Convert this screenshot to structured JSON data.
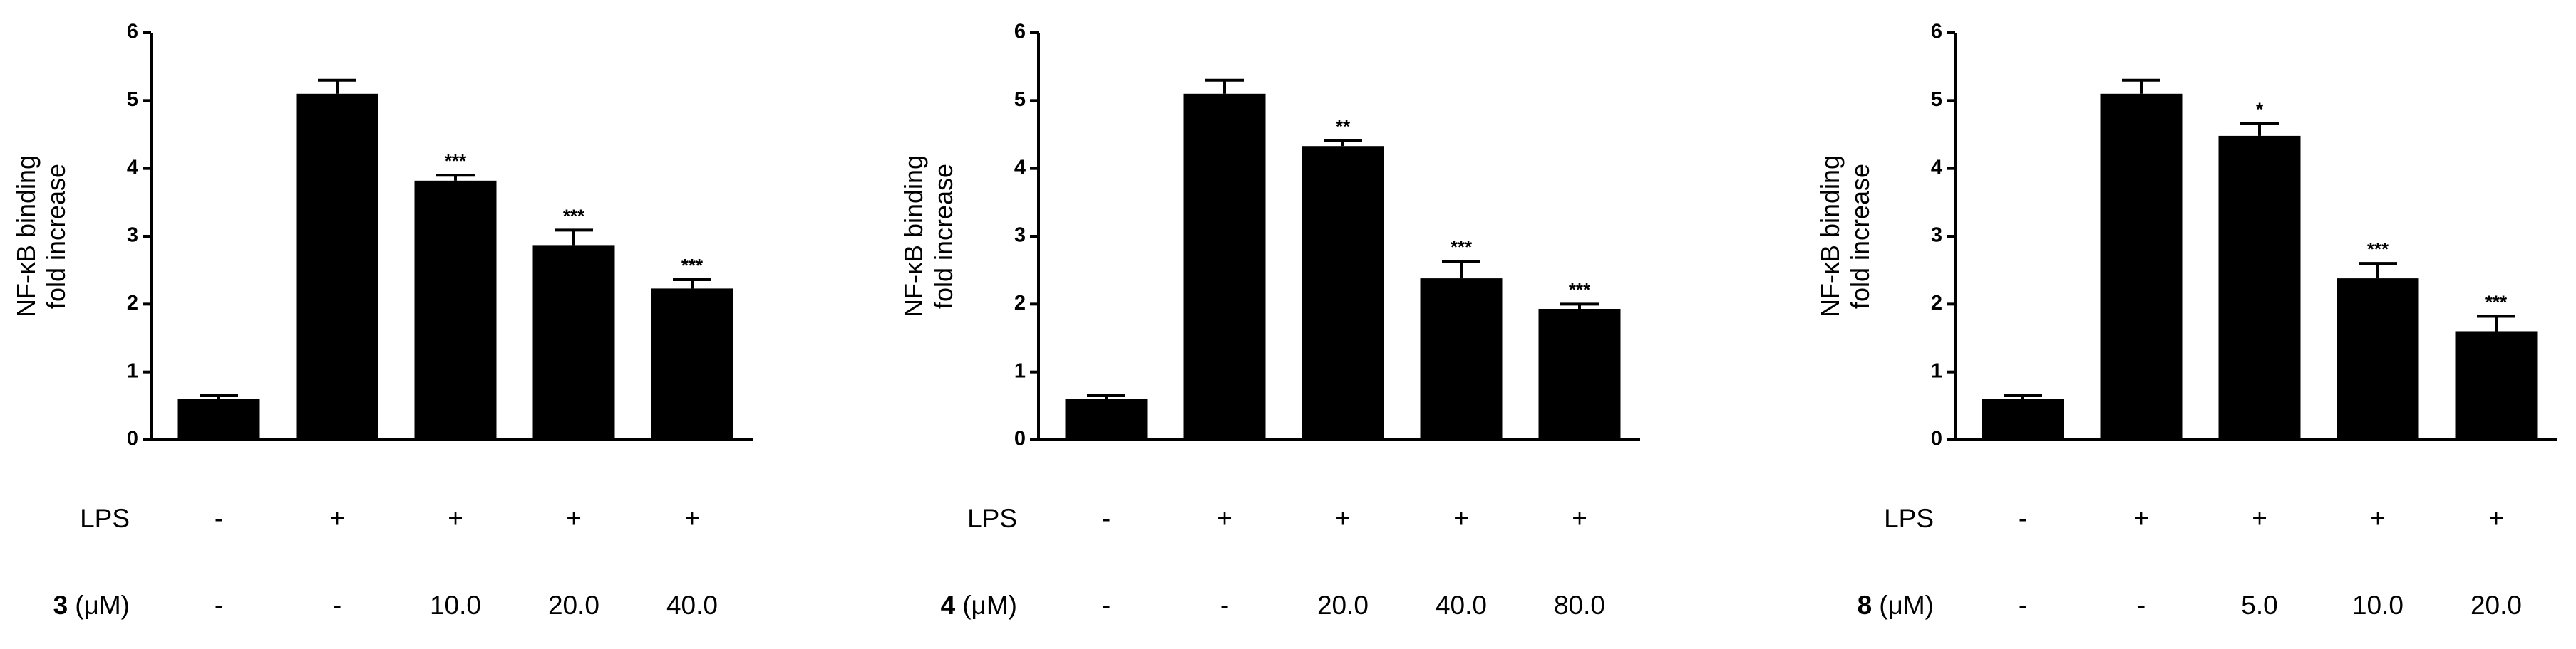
{
  "chart_data": [
    {
      "type": "bar",
      "y_label": [
        "NF-κB binding",
        "fold increase"
      ],
      "color": "#000000",
      "values": [
        0.6,
        5.1,
        3.82,
        2.87,
        2.23
      ],
      "errors": [
        0.05,
        0.2,
        0.08,
        0.22,
        0.13
      ],
      "annotations": [
        null,
        null,
        "***",
        "***",
        "***"
      ],
      "ylim": [
        0,
        6
      ],
      "yticks": [
        0,
        1,
        2,
        3,
        4,
        5,
        6
      ],
      "rows": [
        {
          "label": "LPS",
          "cells": [
            "-",
            "+",
            "+",
            "+",
            "+"
          ]
        },
        {
          "label": "3",
          "unit": "(μM)",
          "cells": [
            "-",
            "-",
            "10.0",
            "20.0",
            "40.0"
          ]
        }
      ]
    },
    {
      "type": "bar",
      "y_label": [
        "NF-κB binding",
        "fold increase"
      ],
      "color": "#000000",
      "values": [
        0.6,
        5.1,
        4.33,
        2.38,
        1.93
      ],
      "errors": [
        0.05,
        0.2,
        0.08,
        0.25,
        0.07
      ],
      "annotations": [
        null,
        null,
        "**",
        "***",
        "***"
      ],
      "ylim": [
        0,
        6
      ],
      "yticks": [
        0,
        1,
        2,
        3,
        4,
        5,
        6
      ],
      "rows": [
        {
          "label": "LPS",
          "cells": [
            "-",
            "+",
            "+",
            "+",
            "+"
          ]
        },
        {
          "label": "4",
          "unit": "(μM)",
          "cells": [
            "-",
            "-",
            "20.0",
            "40.0",
            "80.0"
          ]
        }
      ]
    },
    {
      "type": "bar",
      "y_label": [
        "NF-κB binding",
        "fold increase"
      ],
      "color": "#000000",
      "values": [
        0.6,
        5.1,
        4.48,
        2.38,
        1.6
      ],
      "errors": [
        0.05,
        0.2,
        0.18,
        0.22,
        0.22
      ],
      "annotations": [
        null,
        null,
        "*",
        "***",
        "***"
      ],
      "ylim": [
        0,
        6
      ],
      "yticks": [
        0,
        1,
        2,
        3,
        4,
        5,
        6
      ],
      "rows": [
        {
          "label": "LPS",
          "cells": [
            "-",
            "+",
            "+",
            "+",
            "+"
          ]
        },
        {
          "label": "8",
          "unit": "(μM)",
          "cells": [
            "-",
            "-",
            "5.0",
            "10.0",
            "20.0"
          ]
        }
      ]
    }
  ]
}
